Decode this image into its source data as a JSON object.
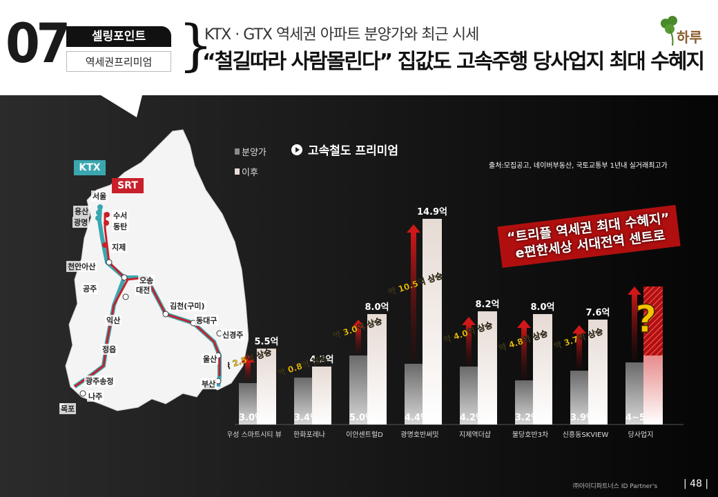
{
  "header": {
    "number": "07",
    "tag_top": "셀링포인트",
    "tag_bottom": "역세권프리미엄",
    "subtitle": "KTX · GTX 역세권 아파트 분양가와 최근 시세",
    "title": "“철길따라 사람몰린다” 집값도 고속주행 당사업지 최대 수혜지",
    "logo_text": "하루"
  },
  "map": {
    "ktx_label": "KTX",
    "srt_label": "SRT",
    "ktx_color": "#3aa7b0",
    "srt_color": "#c8202a",
    "stations": [
      "서울",
      "용산",
      "광명",
      "수서",
      "동탄",
      "지제",
      "천안아산",
      "오송",
      "대전",
      "공주",
      "김천(구미)",
      "동대구",
      "신경주",
      "익산",
      "울산",
      "정읍",
      "부산",
      "광주송정",
      "나주",
      "목포"
    ]
  },
  "chart_data": {
    "type": "bar",
    "title": "고속철도 프리미엄",
    "source": "출처:모집공고, 네이버부동산, 국토교통부 1년내 실거래최고가",
    "unit": "억",
    "categories": [
      "우성 스마트시티 뷰",
      "한화포레나",
      "이안센트럴D",
      "광명호반써밋",
      "지제역더샵",
      "불당호반3차",
      "신흥동SKVIEW",
      "당사업지"
    ],
    "series": [
      {
        "name": "분양가",
        "values": [
          3.0,
          3.4,
          5.0,
          4.4,
          4.2,
          3.2,
          3.9,
          4.5
        ],
        "labels": [
          "3.0억",
          "3.4억",
          "5.0억",
          "4.4억",
          "4.2억",
          "3.2억",
          "3.9억",
          "4~5억"
        ],
        "color": "#8a8a8a"
      },
      {
        "name": "이후",
        "values": [
          5.5,
          4.2,
          8.0,
          14.9,
          8.2,
          8.0,
          7.6,
          null
        ],
        "labels": [
          "5.5억",
          "4.2억",
          "8.0억",
          "14.9억",
          "8.2억",
          "8.0억",
          "7.6억",
          ""
        ],
        "color": "#e8dcd6"
      }
    ],
    "increase_labels": [
      "약 2.5억 상승",
      "약 0.8억 상승",
      "약 3.0억 상승",
      "약 10.5억 상승",
      "약 4.0억 상승",
      "약 4.8억 상승",
      "약 3.7억 상승"
    ],
    "unknown_mark": "?",
    "ylim": [
      0,
      15.5
    ]
  },
  "promo": {
    "line1": "“트리플 역세권 최대 수혜지”",
    "line2": "e편한세상 서대전역 센트로"
  },
  "footer": {
    "partner": "㈜아이디파트너스 ID Partner's",
    "page": "| 48 |"
  }
}
